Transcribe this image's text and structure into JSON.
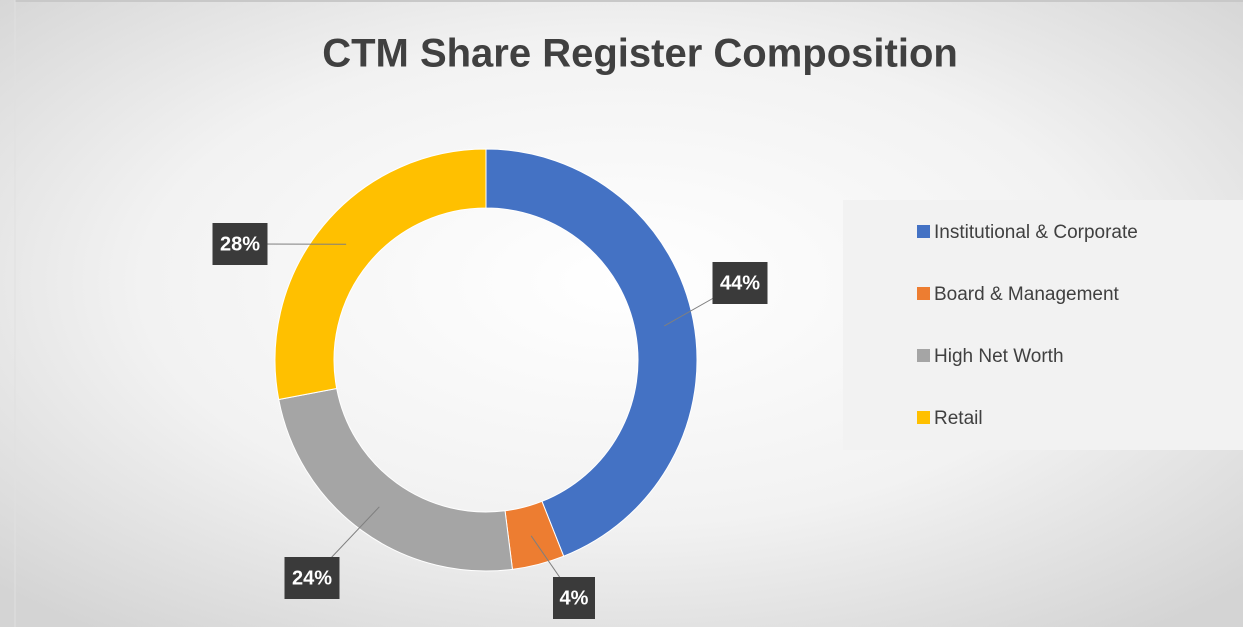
{
  "chart_data": {
    "type": "doughnut",
    "title": "CTM Share Register Composition",
    "categories": [
      "Institutional & Corporate",
      "Board & Management",
      "High Net Worth",
      "Retail"
    ],
    "values": [
      44,
      4,
      24,
      28
    ],
    "value_labels": [
      "44%",
      "4%",
      "24%",
      "28%"
    ],
    "colors": [
      "#4472c4",
      "#ed7d31",
      "#a5a5a5",
      "#ffc000"
    ],
    "legend": "right"
  }
}
